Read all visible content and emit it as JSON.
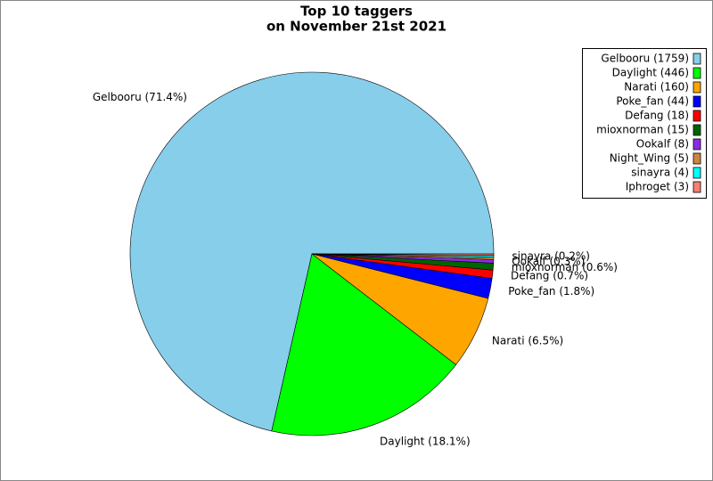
{
  "chart_data": {
    "type": "pie",
    "title": [
      "Top 10 taggers",
      "on November 21st 2021"
    ],
    "values": [
      1759,
      446,
      160,
      44,
      18,
      15,
      8,
      5,
      4,
      3
    ],
    "legend_labels": [
      "Gelbooru (1759)",
      "Daylight (446)",
      "Narati (160)",
      "Poke_fan (44)",
      "Defang (18)",
      "mioxnorman (15)",
      "Ookalf (8)",
      "Night_Wing (5)",
      "sinayra (4)",
      "Iphroget (3)"
    ],
    "slice_labels": [
      "Gelbooru (71.4%)",
      "Daylight (18.1%)",
      "Narati (6.5%)",
      "Poke_fan (1.8%)",
      "Defang (0.7%)",
      "mioxnorman (0.6%)",
      "Ookalf (0.3%)",
      null,
      "sinayra (0.2%)",
      null
    ],
    "colors": [
      "#87ceeb",
      "#00ff00",
      "#ffa500",
      "#0000ff",
      "#ff0000",
      "#006400",
      "#8a2be2",
      "#cd853f",
      "#00ffff",
      "#fa8072"
    ],
    "legend": "upper right"
  }
}
